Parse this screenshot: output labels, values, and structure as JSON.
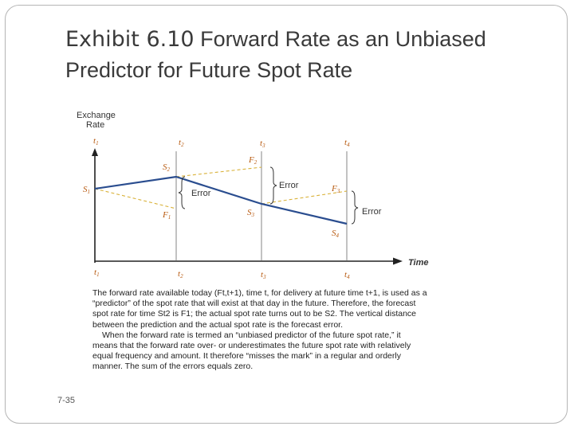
{
  "title": {
    "exhibit": "Exhibit 6.10",
    "text": "Forward Rate as an Unbiased Predictor for Future Spot Rate"
  },
  "diagram": {
    "y_axis_label_line1": "Exchange",
    "y_axis_label_line2": "Rate",
    "x_axis_label": "Time",
    "time_labels": [
      "t",
      "t",
      "t",
      "t"
    ],
    "time_subs": [
      "1",
      "2",
      "3",
      "4"
    ],
    "spot_labels": [
      "S",
      "S",
      "S",
      "S"
    ],
    "spot_subs": [
      "1",
      "2",
      "3",
      "4"
    ],
    "forward_labels": [
      "F",
      "F",
      "F"
    ],
    "forward_subs": [
      "1",
      "2",
      "3"
    ],
    "error_label": "Error",
    "colors": {
      "spot": "#2a4d8f",
      "forward": "#d9b23a",
      "axis": "#222222",
      "tick": "#666666"
    }
  },
  "caption": {
    "p1": "The forward rate available today (Ft,t+1), time t, for delivery at future time t+1, is used as a “predictor” of the spot rate that will exist at that day in the future. Therefore, the forecast spot rate for time St2 is F1; the actual spot rate turns out to be S2. The vertical distance between the prediction and the actual spot rate is the forecast error.",
    "p2": "When the forward rate is termed an “unbiased predictor of the future spot rate,” it means that the forward rate over- or underestimates the future spot rate with relatively equal frequency and amount. It therefore “misses the mark” in a regular and orderly manner. The sum of the errors equals zero."
  },
  "page_number": "7-35"
}
